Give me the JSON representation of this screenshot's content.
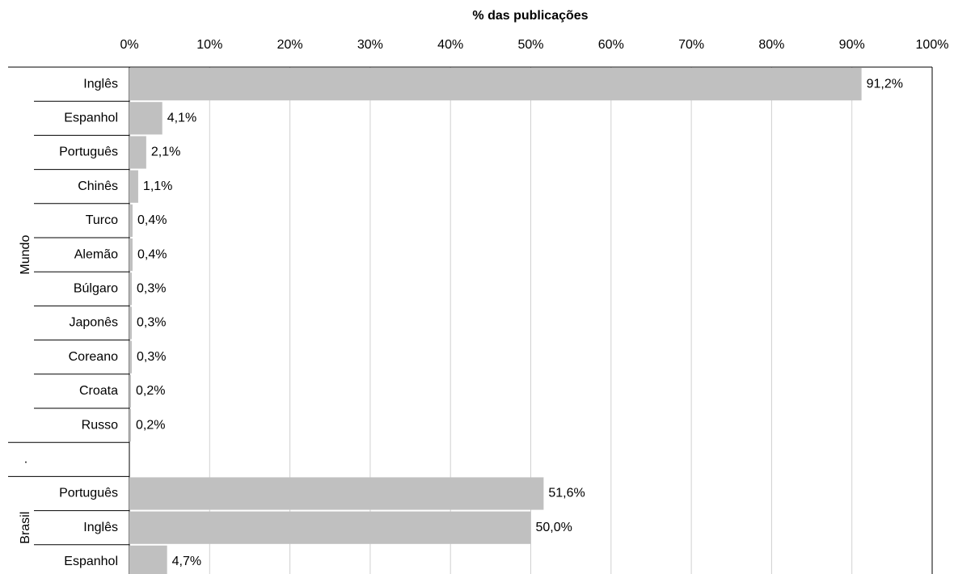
{
  "chart_data": {
    "type": "bar",
    "orientation": "horizontal",
    "x_label": "% das publicações",
    "xlim": [
      0,
      100
    ],
    "xticks": [
      {
        "value": 0,
        "label": "0%"
      },
      {
        "value": 10,
        "label": "10%"
      },
      {
        "value": 20,
        "label": "20%"
      },
      {
        "value": 30,
        "label": "30%"
      },
      {
        "value": 40,
        "label": "40%"
      },
      {
        "value": 50,
        "label": "50%"
      },
      {
        "value": 60,
        "label": "60%"
      },
      {
        "value": 70,
        "label": "70%"
      },
      {
        "value": 80,
        "label": "80%"
      },
      {
        "value": 90,
        "label": "90%"
      },
      {
        "value": 100,
        "label": "100%"
      }
    ],
    "grid": true,
    "color": "#c0c0c0",
    "groups": [
      {
        "name": "Mundo",
        "categories": [
          "Inglês",
          "Espanhol",
          "Português",
          "Chinês",
          "Turco",
          "Alemão",
          "Búlgaro",
          "Japonês",
          "Coreano",
          "Croata",
          "Russo"
        ],
        "values": [
          91.2,
          4.1,
          2.1,
          1.1,
          0.4,
          0.4,
          0.3,
          0.3,
          0.3,
          0.2,
          0.2
        ],
        "value_labels": [
          "91,2%",
          "4,1%",
          "2,1%",
          "1,1%",
          "0,4%",
          "0,4%",
          "0,3%",
          "0,3%",
          "0,3%",
          "0,2%",
          "0,2%"
        ]
      },
      {
        "name": ".",
        "categories": [],
        "values": [],
        "value_labels": []
      },
      {
        "name": "Brasil",
        "categories": [
          "Português",
          "Inglês",
          "Espanhol"
        ],
        "values": [
          51.6,
          50.0,
          4.7
        ],
        "value_labels": [
          "51,6%",
          "50,0%",
          "4,7%"
        ]
      }
    ]
  }
}
